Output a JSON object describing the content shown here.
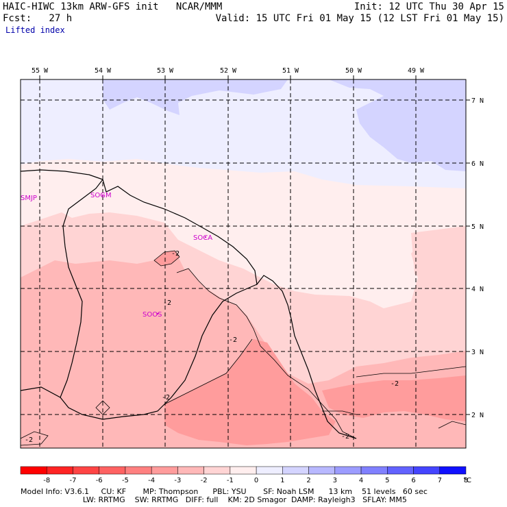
{
  "header": {
    "model_line": "HAIC-HIWC 13km ARW-GFS init   NCAR/MMM",
    "init_line": "Init: 12 UTC Thu 30 Apr 15",
    "fcst_line": "Fcst:   27 h",
    "valid_line": "Valid: 15 UTC Fri 01 May 15 (12 LST Fri 01 May 15)",
    "field_name": "Lifted index"
  },
  "axes": {
    "lon_labels": [
      "55 W",
      "54 W",
      "53 W",
      "52 W",
      "51 W",
      "50 W",
      "49 W"
    ],
    "lat_labels": [
      "7 N",
      "6 N",
      "5 N",
      "4 N",
      "3 N",
      "2 N"
    ]
  },
  "stations": [
    "SMJP",
    "SOGM",
    "SOCA",
    "SOOS"
  ],
  "contour_labels": [
    "-2",
    "-2",
    "-2",
    "-2",
    "-2",
    "-2",
    "-2"
  ],
  "colorbar": {
    "ticks": [
      "-8",
      "-7",
      "-6",
      "-5",
      "-4",
      "-3",
      "-2",
      "-1",
      "0",
      "1",
      "2",
      "3",
      "4",
      "5",
      "6",
      "7",
      "8"
    ],
    "unit": "°C",
    "colors": [
      "#ff0000",
      "#ff2424",
      "#ff4444",
      "#ff6262",
      "#ff8080",
      "#ff9c9c",
      "#ffb8b8",
      "#ffd4d4",
      "#ffeeee",
      "#eeeeff",
      "#d4d4ff",
      "#b8b8ff",
      "#9c9cff",
      "#8080ff",
      "#6262ff",
      "#4444ff",
      "#1010ff"
    ]
  },
  "footer": {
    "line1": "Model Info: V3.6.1     CU: KF       MP: Thompson      PBL: YSU       SF: Noah LSM      13 km    51 levels   60 sec",
    "line2": "                          LW: RRTMG    SW: RRTMG   DIFF: full    KM: 2D Smagor  DAMP: Rayleigh3   SFLAY: MM5"
  },
  "fill_colors": {
    "blue_light": "#eeeeff",
    "blue_mid": "#d4d4ff",
    "pink_pale": "#ffeeee",
    "pink_light": "#ffd4d4",
    "pink_mid": "#ffb8b8",
    "pink_dark": "#ff9c9c",
    "station_text": "#cc00cc"
  }
}
